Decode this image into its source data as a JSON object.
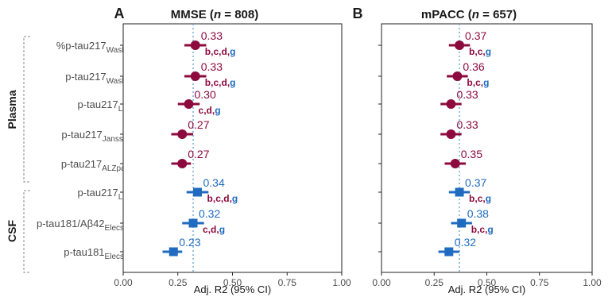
{
  "colors": {
    "plasma": "#8c0a3e",
    "csf": "#1f6bbf",
    "refline": "#6aa9d6",
    "letter_g": "#1f6bbf"
  },
  "groups": [
    {
      "label": "Plasma",
      "rows": [
        0,
        1,
        2,
        3,
        4
      ]
    },
    {
      "label": "CSF",
      "rows": [
        5,
        6,
        7
      ]
    }
  ],
  "rows": [
    {
      "main": "%p-tau217",
      "sub": "WashU",
      "group": "plasma"
    },
    {
      "main": "p-tau217",
      "sub": "WashU",
      "group": "plasma"
    },
    {
      "main": "p-tau217",
      "sub": "Lilly",
      "group": "plasma"
    },
    {
      "main": "p-tau217",
      "sub": "Janssen",
      "group": "plasma"
    },
    {
      "main": "p-tau217",
      "sub": "ALZpath",
      "group": "plasma"
    },
    {
      "main": "p-tau217",
      "sub": "Lilly",
      "group": "csf"
    },
    {
      "main": "p-tau181/Aβ42",
      "sub": "Elecsys",
      "group": "csf"
    },
    {
      "main": "p-tau181",
      "sub": "Elecsys",
      "group": "csf"
    }
  ],
  "chart_data": [
    {
      "type": "forest",
      "panel": "A",
      "title_pre": "MMSE (",
      "title_n": "n",
      "title_post": " = 808)",
      "xlabel": "Adj. R2 (95% CI)",
      "xlim": [
        0,
        1
      ],
      "xticks": [
        "0.00",
        "0.25",
        "0.50",
        "0.75",
        "1.00"
      ],
      "reference_line": 0.32,
      "points": [
        {
          "value": 0.33,
          "label": "0.33",
          "ci": [
            0.28,
            0.38
          ],
          "letters": [
            "b",
            "c",
            "d",
            "g"
          ]
        },
        {
          "value": 0.33,
          "label": "0.33",
          "ci": [
            0.28,
            0.38
          ],
          "letters": [
            "b",
            "c",
            "d",
            "g"
          ]
        },
        {
          "value": 0.3,
          "label": "0.30",
          "ci": [
            0.25,
            0.35
          ],
          "letters": [
            "c",
            "d",
            "g"
          ]
        },
        {
          "value": 0.27,
          "label": "0.27",
          "ci": [
            0.22,
            0.32
          ],
          "letters": []
        },
        {
          "value": 0.27,
          "label": "0.27",
          "ci": [
            0.22,
            0.31
          ],
          "letters": []
        },
        {
          "value": 0.34,
          "label": "0.34",
          "ci": [
            0.29,
            0.39
          ],
          "letters": [
            "b",
            "c",
            "d",
            "g"
          ]
        },
        {
          "value": 0.32,
          "label": "0.32",
          "ci": [
            0.27,
            0.37
          ],
          "letters": [
            "c",
            "d",
            "g"
          ]
        },
        {
          "value": 0.23,
          "label": "0.23",
          "ci": [
            0.18,
            0.27
          ],
          "letters": []
        }
      ]
    },
    {
      "type": "forest",
      "panel": "B",
      "title_pre": "mPACC (",
      "title_n": "n",
      "title_post": " = 657)",
      "xlabel": "Adj. R2 (95% CI)",
      "xlim": [
        0,
        1
      ],
      "xticks": [
        "0.00",
        "0.25",
        "0.50",
        "0.75",
        "1.00"
      ],
      "reference_line": 0.37,
      "points": [
        {
          "value": 0.37,
          "label": "0.37",
          "ci": [
            0.32,
            0.42
          ],
          "letters": [
            "b",
            "c",
            "g"
          ]
        },
        {
          "value": 0.36,
          "label": "0.36",
          "ci": [
            0.31,
            0.41
          ],
          "letters": [
            "b",
            "c",
            "g"
          ]
        },
        {
          "value": 0.33,
          "label": "0.33",
          "ci": [
            0.28,
            0.38
          ],
          "letters": []
        },
        {
          "value": 0.33,
          "label": "0.33",
          "ci": [
            0.28,
            0.38
          ],
          "letters": []
        },
        {
          "value": 0.35,
          "label": "0.35",
          "ci": [
            0.3,
            0.4
          ],
          "letters": []
        },
        {
          "value": 0.37,
          "label": "0.37",
          "ci": [
            0.32,
            0.42
          ],
          "letters": [
            "b",
            "c",
            "g"
          ]
        },
        {
          "value": 0.38,
          "label": "0.38",
          "ci": [
            0.33,
            0.43
          ],
          "letters": [
            "b",
            "c",
            "g"
          ]
        },
        {
          "value": 0.32,
          "label": "0.32",
          "ci": [
            0.27,
            0.37
          ],
          "letters": []
        }
      ]
    }
  ]
}
